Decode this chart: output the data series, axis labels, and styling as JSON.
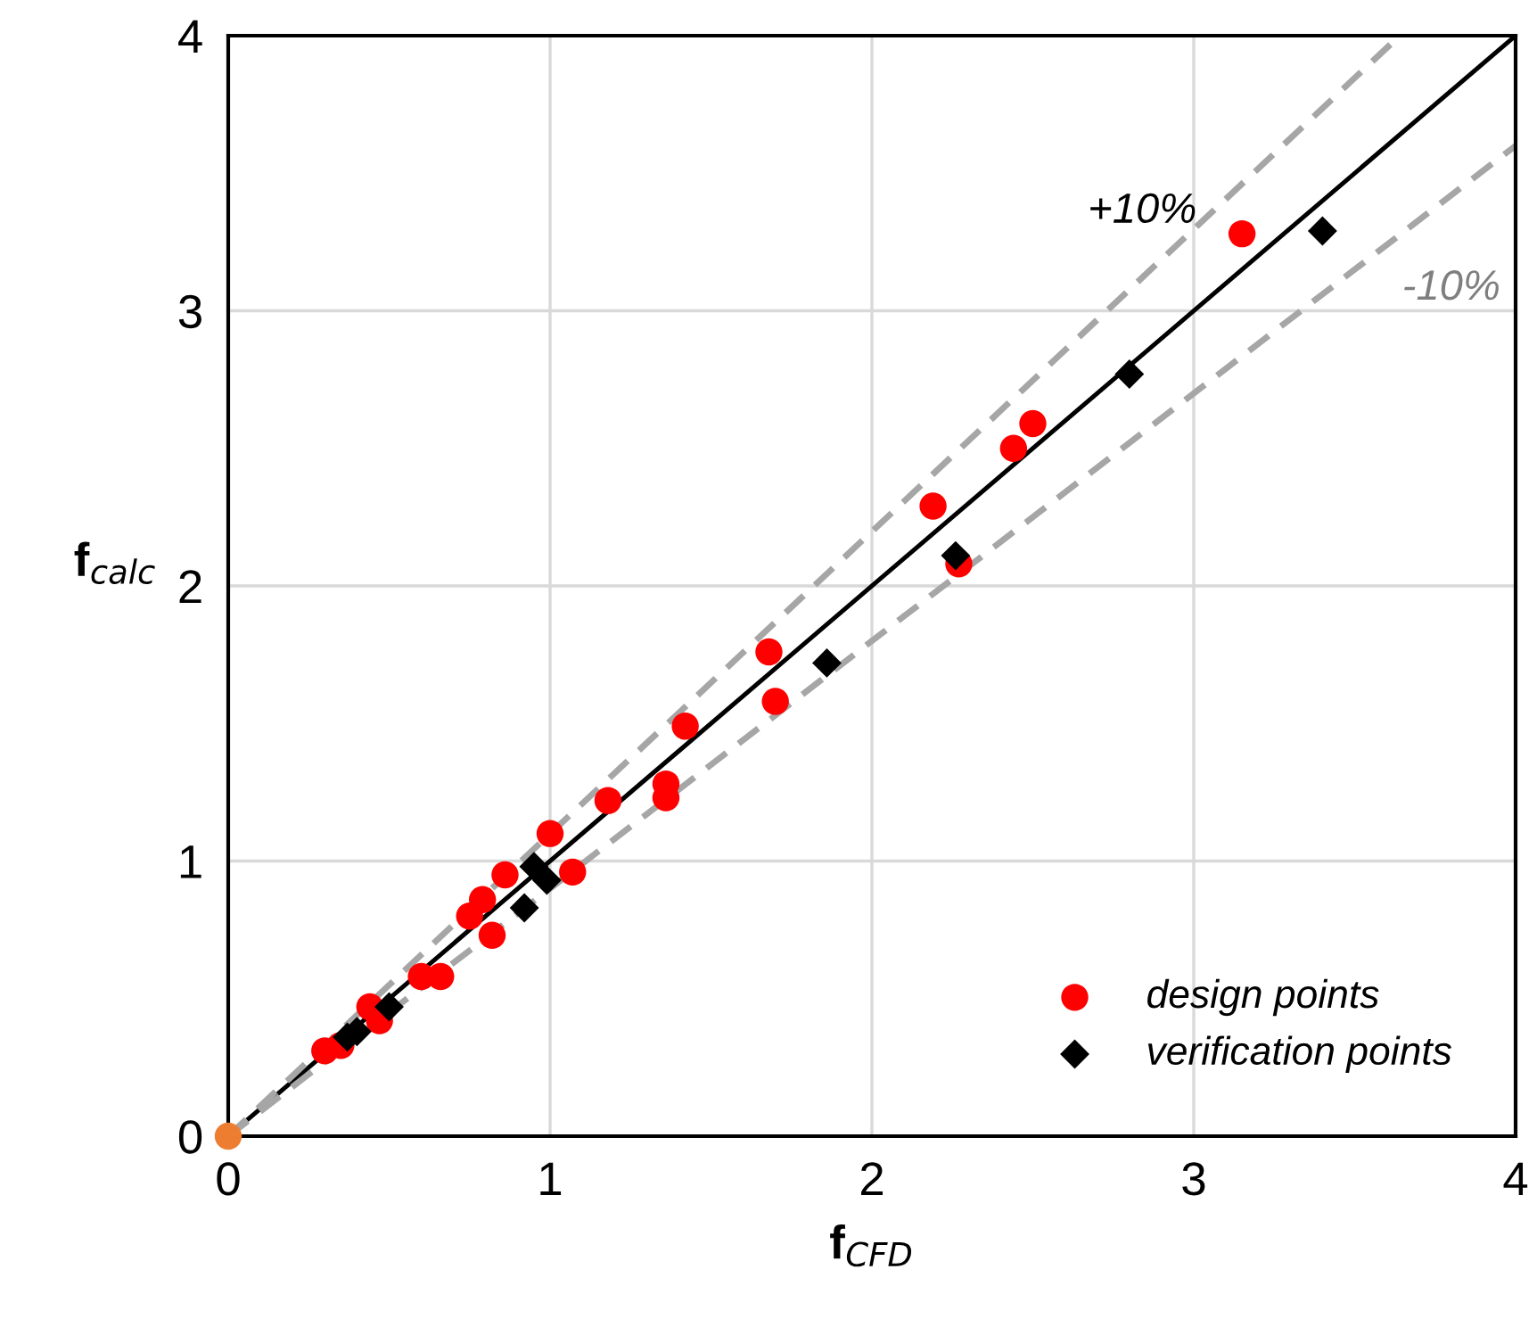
{
  "chart_data": {
    "type": "scatter",
    "xlabel": "f$_{CFD}$",
    "ylabel": "f$_{calc}$",
    "xlim": [
      0,
      4
    ],
    "ylim": [
      0,
      4
    ],
    "xticks": [
      0,
      1,
      2,
      3,
      4
    ],
    "yticks": [
      0,
      1,
      2,
      3,
      4
    ],
    "grid": true,
    "legend": "bottom right",
    "annotations": [
      "+10%",
      "-10%"
    ],
    "series": [
      {
        "type": "line",
        "color": "#000000",
        "line_style": "solid",
        "marker": "none",
        "x": [
          0,
          4
        ],
        "values": [
          0,
          4
        ]
      },
      {
        "type": "line",
        "color": "#a6a6a6",
        "line_style": "dashed",
        "marker": "none",
        "x": [
          0,
          3.64
        ],
        "values": [
          0,
          4
        ]
      },
      {
        "type": "line",
        "color": "#a6a6a6",
        "line_style": "dashed",
        "marker": "none",
        "x": [
          0,
          4
        ],
        "values": [
          0,
          3.6
        ]
      },
      {
        "name": "design points",
        "color": "#ff0000",
        "marker": "circle",
        "x": [
          0.3,
          0.35,
          0.44,
          0.47,
          0.6,
          0.66,
          0.75,
          0.79,
          0.82,
          0.86,
          1.0,
          1.07,
          1.18,
          1.36,
          1.36,
          1.42,
          1.68,
          1.7,
          2.19,
          2.44,
          2.5,
          2.27,
          3.15
        ],
        "values": [
          0.31,
          0.33,
          0.47,
          0.42,
          0.58,
          0.58,
          0.8,
          0.86,
          0.73,
          0.95,
          1.1,
          0.96,
          1.22,
          1.28,
          1.23,
          1.49,
          1.76,
          1.58,
          2.29,
          2.5,
          2.59,
          2.08,
          3.28
        ]
      },
      {
        "name": "verification points",
        "color": "#000000",
        "marker": "diamond",
        "x": [
          0.37,
          0.4,
          0.5,
          0.92,
          0.95,
          0.99,
          1.86,
          2.26,
          2.8,
          3.4
        ],
        "values": [
          0.36,
          0.38,
          0.47,
          0.83,
          0.98,
          0.93,
          1.72,
          2.11,
          2.77,
          3.29
        ]
      },
      {
        "color": "#ed7d31",
        "marker": "circle",
        "x": [
          0
        ],
        "values": [
          0
        ]
      }
    ]
  }
}
